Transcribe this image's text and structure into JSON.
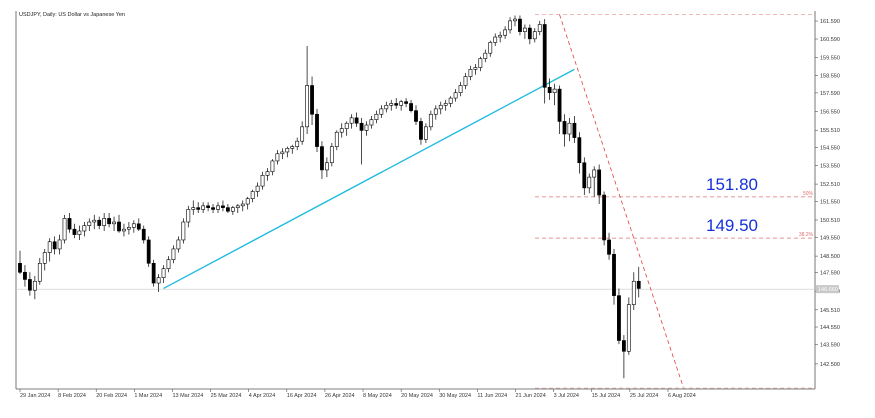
{
  "chart_data": {
    "type": "candlestick",
    "title": "USDJPY, Daily:  US Dollar vs Japanese Yen",
    "ylim": [
      141.1,
      162.15
    ],
    "y_ticks": [
      "161.590",
      "160.590",
      "159.550",
      "158.550",
      "157.590",
      "156.550",
      "155.510",
      "154.550",
      "153.550",
      "152.510",
      "151.550",
      "150.510",
      "149.550",
      "148.500",
      "147.590",
      "146.550",
      "145.510",
      "144.550",
      "143.590",
      "142.500"
    ],
    "x_ticks": [
      "29 Jan 2024",
      "8 Feb 2024",
      "20 Feb 2024",
      "1 Mar 2024",
      "13 Mar 2024",
      "25 Mar 2024",
      "4 Apr 2024",
      "16 Apr 2024",
      "26 Apr 2024",
      "8 May 2024",
      "20 May 2024",
      "30 May 2024",
      "11 Jun 2024",
      "21 Jun 2024",
      "3 Jul 2024",
      "15 Jul 2024",
      "25 Jul 2024",
      "6 Aug 2024"
    ],
    "current_price": "146.660",
    "candles": [
      {
        "o": 148.1,
        "h": 148.8,
        "l": 147.5,
        "c": 147.6
      },
      {
        "o": 147.6,
        "h": 148.0,
        "l": 146.8,
        "c": 147.2
      },
      {
        "o": 147.2,
        "h": 147.6,
        "l": 146.3,
        "c": 146.6
      },
      {
        "o": 146.6,
        "h": 147.4,
        "l": 146.1,
        "c": 147.1
      },
      {
        "o": 147.1,
        "h": 148.4,
        "l": 146.9,
        "c": 148.1
      },
      {
        "o": 148.1,
        "h": 148.9,
        "l": 147.7,
        "c": 148.7
      },
      {
        "o": 148.7,
        "h": 149.5,
        "l": 148.2,
        "c": 149.3
      },
      {
        "o": 149.3,
        "h": 149.6,
        "l": 148.6,
        "c": 148.9
      },
      {
        "o": 148.9,
        "h": 149.7,
        "l": 148.6,
        "c": 149.4
      },
      {
        "o": 149.4,
        "h": 150.8,
        "l": 149.2,
        "c": 150.6
      },
      {
        "o": 150.6,
        "h": 150.9,
        "l": 149.8,
        "c": 150.0
      },
      {
        "o": 150.0,
        "h": 150.3,
        "l": 149.5,
        "c": 149.7
      },
      {
        "o": 149.7,
        "h": 150.2,
        "l": 149.4,
        "c": 149.9
      },
      {
        "o": 149.9,
        "h": 150.4,
        "l": 149.6,
        "c": 150.2
      },
      {
        "o": 150.2,
        "h": 150.6,
        "l": 149.9,
        "c": 150.4
      },
      {
        "o": 150.4,
        "h": 150.8,
        "l": 150.0,
        "c": 150.5
      },
      {
        "o": 150.5,
        "h": 150.7,
        "l": 150.0,
        "c": 150.2
      },
      {
        "o": 150.2,
        "h": 150.9,
        "l": 149.9,
        "c": 150.6
      },
      {
        "o": 150.6,
        "h": 150.9,
        "l": 150.1,
        "c": 150.3
      },
      {
        "o": 150.3,
        "h": 150.7,
        "l": 149.9,
        "c": 150.4
      },
      {
        "o": 150.4,
        "h": 150.8,
        "l": 149.8,
        "c": 149.9
      },
      {
        "o": 149.9,
        "h": 150.3,
        "l": 149.6,
        "c": 150.0
      },
      {
        "o": 150.0,
        "h": 150.4,
        "l": 149.7,
        "c": 150.1
      },
      {
        "o": 150.1,
        "h": 150.5,
        "l": 149.8,
        "c": 150.3
      },
      {
        "o": 150.3,
        "h": 150.6,
        "l": 149.9,
        "c": 150.0
      },
      {
        "o": 150.0,
        "h": 150.2,
        "l": 149.2,
        "c": 149.4
      },
      {
        "o": 149.4,
        "h": 149.6,
        "l": 147.9,
        "c": 148.1
      },
      {
        "o": 148.1,
        "h": 148.3,
        "l": 146.8,
        "c": 147.0
      },
      {
        "o": 147.0,
        "h": 147.5,
        "l": 146.5,
        "c": 147.3
      },
      {
        "o": 147.3,
        "h": 148.0,
        "l": 147.0,
        "c": 147.8
      },
      {
        "o": 147.8,
        "h": 148.5,
        "l": 147.6,
        "c": 148.3
      },
      {
        "o": 148.3,
        "h": 149.1,
        "l": 148.1,
        "c": 148.9
      },
      {
        "o": 148.9,
        "h": 149.6,
        "l": 148.7,
        "c": 149.4
      },
      {
        "o": 149.4,
        "h": 150.6,
        "l": 149.2,
        "c": 150.4
      },
      {
        "o": 150.4,
        "h": 151.3,
        "l": 150.1,
        "c": 151.1
      },
      {
        "o": 151.1,
        "h": 151.6,
        "l": 150.8,
        "c": 151.2
      },
      {
        "o": 151.2,
        "h": 151.5,
        "l": 150.9,
        "c": 151.1
      },
      {
        "o": 151.1,
        "h": 151.5,
        "l": 150.9,
        "c": 151.3
      },
      {
        "o": 151.3,
        "h": 151.5,
        "l": 151.0,
        "c": 151.2
      },
      {
        "o": 151.2,
        "h": 151.4,
        "l": 150.9,
        "c": 151.1
      },
      {
        "o": 151.1,
        "h": 151.5,
        "l": 150.9,
        "c": 151.3
      },
      {
        "o": 151.3,
        "h": 151.6,
        "l": 151.0,
        "c": 151.2
      },
      {
        "o": 151.2,
        "h": 151.4,
        "l": 150.9,
        "c": 151.0
      },
      {
        "o": 151.0,
        "h": 151.3,
        "l": 150.8,
        "c": 151.2
      },
      {
        "o": 151.2,
        "h": 151.4,
        "l": 150.9,
        "c": 151.3
      },
      {
        "o": 151.3,
        "h": 151.6,
        "l": 151.0,
        "c": 151.4
      },
      {
        "o": 151.4,
        "h": 151.8,
        "l": 151.1,
        "c": 151.7
      },
      {
        "o": 151.7,
        "h": 152.2,
        "l": 151.5,
        "c": 152.1
      },
      {
        "o": 152.1,
        "h": 152.6,
        "l": 151.8,
        "c": 152.4
      },
      {
        "o": 152.4,
        "h": 153.2,
        "l": 152.2,
        "c": 153.0
      },
      {
        "o": 153.0,
        "h": 153.4,
        "l": 152.7,
        "c": 153.2
      },
      {
        "o": 153.2,
        "h": 153.9,
        "l": 153.0,
        "c": 153.8
      },
      {
        "o": 153.8,
        "h": 154.4,
        "l": 153.6,
        "c": 154.2
      },
      {
        "o": 154.2,
        "h": 154.5,
        "l": 153.9,
        "c": 154.3
      },
      {
        "o": 154.3,
        "h": 154.6,
        "l": 154.0,
        "c": 154.5
      },
      {
        "o": 154.5,
        "h": 154.7,
        "l": 154.2,
        "c": 154.6
      },
      {
        "o": 154.6,
        "h": 155.1,
        "l": 154.4,
        "c": 154.9
      },
      {
        "o": 154.9,
        "h": 156.0,
        "l": 154.7,
        "c": 155.7
      },
      {
        "o": 155.7,
        "h": 160.2,
        "l": 155.3,
        "c": 158.0
      },
      {
        "o": 158.0,
        "h": 158.5,
        "l": 155.8,
        "c": 156.4
      },
      {
        "o": 156.4,
        "h": 156.7,
        "l": 154.3,
        "c": 154.6
      },
      {
        "o": 154.6,
        "h": 154.9,
        "l": 152.8,
        "c": 153.3
      },
      {
        "o": 153.3,
        "h": 154.0,
        "l": 152.9,
        "c": 153.7
      },
      {
        "o": 153.7,
        "h": 154.8,
        "l": 153.5,
        "c": 154.6
      },
      {
        "o": 154.6,
        "h": 155.5,
        "l": 154.4,
        "c": 155.4
      },
      {
        "o": 155.4,
        "h": 155.9,
        "l": 155.1,
        "c": 155.6
      },
      {
        "o": 155.6,
        "h": 156.0,
        "l": 155.2,
        "c": 155.9
      },
      {
        "o": 155.9,
        "h": 156.4,
        "l": 155.6,
        "c": 156.2
      },
      {
        "o": 156.2,
        "h": 156.5,
        "l": 155.7,
        "c": 155.9
      },
      {
        "o": 155.9,
        "h": 156.2,
        "l": 153.6,
        "c": 155.5
      },
      {
        "o": 155.5,
        "h": 156.0,
        "l": 155.2,
        "c": 155.8
      },
      {
        "o": 155.8,
        "h": 156.3,
        "l": 155.6,
        "c": 156.1
      },
      {
        "o": 156.1,
        "h": 156.6,
        "l": 155.9,
        "c": 156.4
      },
      {
        "o": 156.4,
        "h": 156.9,
        "l": 156.2,
        "c": 156.7
      },
      {
        "o": 156.7,
        "h": 157.1,
        "l": 156.5,
        "c": 156.9
      },
      {
        "o": 156.9,
        "h": 157.2,
        "l": 156.6,
        "c": 157.0
      },
      {
        "o": 157.0,
        "h": 157.3,
        "l": 156.7,
        "c": 156.9
      },
      {
        "o": 156.9,
        "h": 157.2,
        "l": 156.6,
        "c": 157.1
      },
      {
        "o": 157.1,
        "h": 157.3,
        "l": 156.8,
        "c": 157.0
      },
      {
        "o": 157.0,
        "h": 157.2,
        "l": 156.5,
        "c": 156.6
      },
      {
        "o": 156.6,
        "h": 156.9,
        "l": 155.8,
        "c": 156.0
      },
      {
        "o": 156.0,
        "h": 156.2,
        "l": 154.7,
        "c": 155.0
      },
      {
        "o": 155.0,
        "h": 155.9,
        "l": 154.8,
        "c": 155.7
      },
      {
        "o": 155.7,
        "h": 156.6,
        "l": 155.5,
        "c": 156.4
      },
      {
        "o": 156.4,
        "h": 156.9,
        "l": 156.1,
        "c": 156.7
      },
      {
        "o": 156.7,
        "h": 157.1,
        "l": 156.4,
        "c": 156.9
      },
      {
        "o": 156.9,
        "h": 157.2,
        "l": 156.6,
        "c": 157.0
      },
      {
        "o": 157.0,
        "h": 157.4,
        "l": 156.8,
        "c": 157.3
      },
      {
        "o": 157.3,
        "h": 157.8,
        "l": 157.1,
        "c": 157.6
      },
      {
        "o": 157.6,
        "h": 158.2,
        "l": 157.4,
        "c": 158.0
      },
      {
        "o": 158.0,
        "h": 158.7,
        "l": 157.8,
        "c": 158.5
      },
      {
        "o": 158.5,
        "h": 159.1,
        "l": 158.3,
        "c": 158.9
      },
      {
        "o": 158.9,
        "h": 159.2,
        "l": 158.6,
        "c": 159.0
      },
      {
        "o": 159.0,
        "h": 159.6,
        "l": 158.8,
        "c": 159.5
      },
      {
        "o": 159.5,
        "h": 160.0,
        "l": 159.3,
        "c": 159.8
      },
      {
        "o": 159.8,
        "h": 160.5,
        "l": 159.6,
        "c": 160.4
      },
      {
        "o": 160.4,
        "h": 160.9,
        "l": 160.2,
        "c": 160.7
      },
      {
        "o": 160.7,
        "h": 161.0,
        "l": 160.4,
        "c": 160.8
      },
      {
        "o": 160.8,
        "h": 161.3,
        "l": 160.6,
        "c": 161.1
      },
      {
        "o": 161.1,
        "h": 161.8,
        "l": 160.9,
        "c": 161.6
      },
      {
        "o": 161.6,
        "h": 161.9,
        "l": 161.3,
        "c": 161.7
      },
      {
        "o": 161.7,
        "h": 161.9,
        "l": 160.8,
        "c": 161.0
      },
      {
        "o": 161.0,
        "h": 161.4,
        "l": 160.6,
        "c": 161.2
      },
      {
        "o": 161.2,
        "h": 161.4,
        "l": 160.3,
        "c": 160.6
      },
      {
        "o": 160.6,
        "h": 161.2,
        "l": 160.4,
        "c": 161.0
      },
      {
        "o": 161.0,
        "h": 161.6,
        "l": 160.8,
        "c": 161.4
      },
      {
        "o": 161.4,
        "h": 161.7,
        "l": 157.0,
        "c": 157.9
      },
      {
        "o": 157.9,
        "h": 158.4,
        "l": 157.2,
        "c": 157.6
      },
      {
        "o": 157.6,
        "h": 158.1,
        "l": 156.9,
        "c": 157.8
      },
      {
        "o": 157.8,
        "h": 158.0,
        "l": 155.3,
        "c": 156.0
      },
      {
        "o": 156.0,
        "h": 156.4,
        "l": 154.6,
        "c": 155.3
      },
      {
        "o": 155.3,
        "h": 156.2,
        "l": 154.9,
        "c": 155.9
      },
      {
        "o": 155.9,
        "h": 156.3,
        "l": 154.8,
        "c": 155.1
      },
      {
        "o": 155.1,
        "h": 155.4,
        "l": 153.1,
        "c": 153.7
      },
      {
        "o": 153.7,
        "h": 154.0,
        "l": 151.9,
        "c": 152.3
      },
      {
        "o": 152.3,
        "h": 153.1,
        "l": 152.0,
        "c": 152.9
      },
      {
        "o": 152.9,
        "h": 153.5,
        "l": 151.8,
        "c": 153.3
      },
      {
        "o": 153.3,
        "h": 153.6,
        "l": 151.4,
        "c": 151.9
      },
      {
        "o": 151.9,
        "h": 152.1,
        "l": 149.1,
        "c": 149.4
      },
      {
        "o": 149.4,
        "h": 149.8,
        "l": 148.3,
        "c": 148.6
      },
      {
        "o": 148.6,
        "h": 148.9,
        "l": 145.8,
        "c": 146.3
      },
      {
        "o": 146.3,
        "h": 146.7,
        "l": 143.6,
        "c": 143.8
      },
      {
        "o": 143.8,
        "h": 144.1,
        "l": 141.7,
        "c": 143.2
      },
      {
        "o": 143.2,
        "h": 146.2,
        "l": 143.0,
        "c": 145.8
      },
      {
        "o": 145.8,
        "h": 147.6,
        "l": 145.5,
        "c": 147.1
      },
      {
        "o": 147.1,
        "h": 147.9,
        "l": 146.2,
        "c": 146.7
      }
    ],
    "horizontal_levels": [
      {
        "price": 161.95,
        "label": "",
        "color": "#e8a0a0"
      },
      {
        "price": 151.8,
        "label": "50%",
        "color": "#e07070"
      },
      {
        "price": 149.5,
        "label": "38.2%",
        "color": "#e07070"
      },
      {
        "price": 141.15,
        "label": "",
        "color": "#e8a0a0"
      }
    ],
    "trendline": {
      "from": {
        "candle": 29,
        "price": 146.7
      },
      "to": {
        "candle": 112,
        "price": 158.9
      },
      "color": "#22bbe0"
    },
    "fib_diagonal": {
      "from": {
        "candle": 109,
        "price": 161.95
      },
      "to": {
        "candle": 134,
        "price": 141.2
      },
      "color": "#e04040"
    },
    "annotations": [
      {
        "text": "151.80",
        "price": 151.8,
        "color": "#1530d8"
      },
      {
        "text": "149.50",
        "price": 149.5,
        "color": "#1530d8"
      }
    ]
  }
}
